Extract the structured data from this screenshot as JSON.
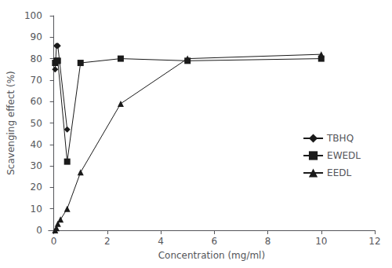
{
  "chart_data": {
    "type": "line",
    "xlabel": "Concentration (mg/ml)",
    "ylabel": "Scavenging effect (%)",
    "xlim": [
      -0.2,
      12
    ],
    "ylim": [
      0,
      100
    ],
    "xticks": [
      0,
      2,
      4,
      6,
      8,
      10,
      12
    ],
    "yticks": [
      0,
      10,
      20,
      30,
      40,
      50,
      60,
      70,
      80,
      90,
      100
    ],
    "grid": false,
    "legend": "right",
    "series": [
      {
        "name": "TBHQ",
        "color": "#1a1a1a",
        "marker": "diamond",
        "line_style": "solid",
        "x": [
          0.05,
          0.1,
          0.15,
          0.5
        ],
        "values": [
          75,
          86,
          86,
          47
        ]
      },
      {
        "name": "EWEDL",
        "color": "#1a1a1a",
        "marker": "square",
        "line_style": "solid",
        "x": [
          0.05,
          0.1,
          0.15,
          0.5,
          1.0,
          2.5,
          5.0,
          10.0
        ],
        "values": [
          78,
          79,
          79,
          32,
          78,
          80,
          79,
          80
        ]
      },
      {
        "name": "EEDL",
        "color": "#1a1a1a",
        "marker": "triangle",
        "line_style": "solid",
        "x": [
          0.05,
          0.1,
          0.15,
          0.25,
          0.5,
          1.0,
          2.5,
          5.0,
          10.0
        ],
        "values": [
          0,
          1,
          3,
          5,
          10,
          27,
          59,
          80,
          82
        ]
      }
    ]
  }
}
